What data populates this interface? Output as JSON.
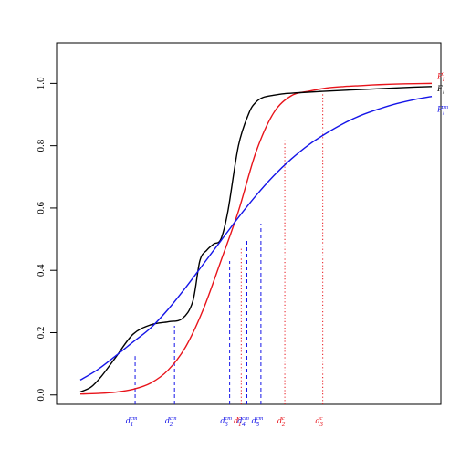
{
  "chart_data": {
    "type": "line",
    "title": "",
    "xlabel": "",
    "ylabel": "",
    "xlim": [
      0,
      1
    ],
    "ylim": [
      -0.03,
      1.13
    ],
    "grid": false,
    "y_ticks": [
      0.0,
      0.2,
      0.4,
      0.6,
      0.8,
      1.0
    ],
    "y_tick_labels": [
      "0.0",
      "0.2",
      "0.4",
      "0.6",
      "0.8",
      "1.0"
    ],
    "series": [
      {
        "name": "F_I^c",
        "label_main": "F",
        "label_sub": "I",
        "label_sup": "c",
        "color": "#e8141b",
        "x": [
          0.0,
          0.05,
          0.1,
          0.15,
          0.2,
          0.25,
          0.3,
          0.35,
          0.4,
          0.45,
          0.5,
          0.55,
          0.6,
          0.65,
          0.7,
          0.75,
          0.8,
          0.85,
          0.9,
          0.95,
          1.0
        ],
        "values": [
          0.003,
          0.005,
          0.009,
          0.018,
          0.038,
          0.08,
          0.155,
          0.275,
          0.43,
          0.59,
          0.78,
          0.905,
          0.96,
          0.975,
          0.985,
          0.99,
          0.993,
          0.996,
          0.998,
          0.999,
          1.0
        ]
      },
      {
        "name": "F_I",
        "label_main": "F",
        "label_sub": "I",
        "label_sup": "",
        "color": "#000000",
        "x": [
          0.0,
          0.03,
          0.06,
          0.1,
          0.15,
          0.2,
          0.25,
          0.29,
          0.32,
          0.34,
          0.36,
          0.38,
          0.4,
          0.42,
          0.45,
          0.48,
          0.5,
          0.52,
          0.55,
          0.58,
          0.62,
          0.68,
          0.75,
          0.85,
          0.95,
          1.0
        ],
        "values": [
          0.01,
          0.025,
          0.06,
          0.12,
          0.195,
          0.225,
          0.235,
          0.245,
          0.3,
          0.43,
          0.465,
          0.485,
          0.5,
          0.59,
          0.8,
          0.905,
          0.94,
          0.955,
          0.962,
          0.967,
          0.97,
          0.974,
          0.978,
          0.983,
          0.988,
          0.99
        ]
      },
      {
        "name": "F_I^cm",
        "label_main": "F",
        "label_sub": "I",
        "label_sup": "cm",
        "color": "#1515e8",
        "x": [
          0.0,
          0.05,
          0.1,
          0.15,
          0.2,
          0.25,
          0.3,
          0.35,
          0.4,
          0.45,
          0.5,
          0.55,
          0.6,
          0.65,
          0.7,
          0.75,
          0.8,
          0.85,
          0.9,
          0.95,
          1.0
        ],
        "values": [
          0.048,
          0.082,
          0.125,
          0.17,
          0.215,
          0.275,
          0.345,
          0.42,
          0.495,
          0.57,
          0.64,
          0.703,
          0.757,
          0.803,
          0.84,
          0.872,
          0.898,
          0.918,
          0.935,
          0.948,
          0.958
        ]
      }
    ],
    "vlines": [
      {
        "name": "d_1^cm",
        "main": "d",
        "sub": "1",
        "sup": "cm",
        "x": 0.156,
        "y": 0.125,
        "color": "#1515e8"
      },
      {
        "name": "d_2^cm",
        "main": "d",
        "sub": "2",
        "sup": "cm",
        "x": 0.268,
        "y": 0.222,
        "color": "#1515e8"
      },
      {
        "name": "d_3^cm",
        "main": "d",
        "sub": "3",
        "sup": "cm",
        "x": 0.425,
        "y": 0.43,
        "color": "#1515e8"
      },
      {
        "name": "d_1^c",
        "main": "d",
        "sub": "1",
        "sup": "c",
        "x": 0.458,
        "y": 0.475,
        "color": "#e8141b"
      },
      {
        "name": "d_4^cm",
        "main": "d",
        "sub": "4",
        "sup": "cm",
        "x": 0.474,
        "y": 0.5,
        "color": "#1515e8"
      },
      {
        "name": "d_5^cm",
        "main": "d",
        "sub": "5",
        "sup": "cm",
        "x": 0.514,
        "y": 0.55,
        "color": "#1515e8"
      },
      {
        "name": "d_2^c",
        "main": "d",
        "sub": "2",
        "sup": "c",
        "x": 0.582,
        "y": 0.82,
        "color": "#e8141b"
      },
      {
        "name": "d_3^c",
        "main": "d",
        "sub": "3",
        "sup": "c",
        "x": 0.69,
        "y": 0.965,
        "color": "#e8141b"
      }
    ]
  }
}
